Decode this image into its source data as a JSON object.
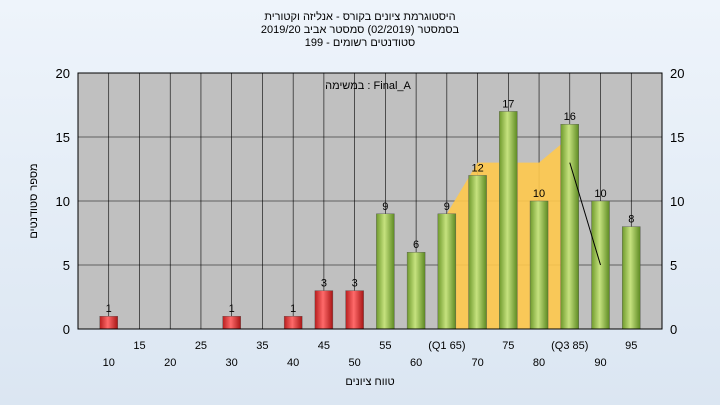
{
  "title_lines": [
    "היסטוגרמת ציונים בקורס - אנליזה וקטורית",
    "בסמסטר  (02/2019)  סמסטר אביב 2019/20",
    "199 - סטודנטים רשומים"
  ],
  "chart_data": {
    "type": "bar",
    "annotation": "במשימה : Final_A",
    "xlabel": "טווח ציונים",
    "ylabel": "מספר סטודנטים",
    "ylim": [
      0,
      20
    ],
    "yticks": [
      0,
      5,
      10,
      15,
      20
    ],
    "x_tick_labels": [
      {
        "label": "10",
        "row": "low"
      },
      {
        "label": "15",
        "row": "high"
      },
      {
        "label": "20",
        "row": "low"
      },
      {
        "label": "25",
        "row": "high"
      },
      {
        "label": "30",
        "row": "low"
      },
      {
        "label": "35",
        "row": "high"
      },
      {
        "label": "40",
        "row": "low"
      },
      {
        "label": "45",
        "row": "high"
      },
      {
        "label": "50",
        "row": "low"
      },
      {
        "label": "55",
        "row": "high"
      },
      {
        "label": "60",
        "row": "low"
      },
      {
        "label": "(Q1 65)",
        "row": "high"
      },
      {
        "label": "70",
        "row": "low"
      },
      {
        "label": "75",
        "row": "high"
      },
      {
        "label": "80",
        "row": "low"
      },
      {
        "label": "(Q3 85)",
        "row": "high"
      },
      {
        "label": "90",
        "row": "low"
      },
      {
        "label": "95",
        "row": "high"
      }
    ],
    "bars": [
      {
        "x": 10,
        "value": 1,
        "color": "#e03a3a"
      },
      {
        "x": 30,
        "value": 1,
        "color": "#e03a3a"
      },
      {
        "x": 40,
        "value": 1,
        "color": "#e03a3a"
      },
      {
        "x": 45,
        "value": 3,
        "color": "#e03a3a"
      },
      {
        "x": 50,
        "value": 3,
        "color": "#e03a3a"
      },
      {
        "x": 55,
        "value": 9,
        "color": "#8cc043"
      },
      {
        "x": 60,
        "value": 6,
        "color": "#8cc043"
      },
      {
        "x": 65,
        "value": 9,
        "color": "#8cc043"
      },
      {
        "x": 70,
        "value": 12,
        "color": "#8cc043"
      },
      {
        "x": 75,
        "value": 17,
        "color": "#8cc043"
      },
      {
        "x": 80,
        "value": 10,
        "color": "#8cc043"
      },
      {
        "x": 85,
        "value": 16,
        "color": "#8cc043"
      },
      {
        "x": 90,
        "value": 10,
        "color": "#8cc043"
      },
      {
        "x": 95,
        "value": 8,
        "color": "#8cc043"
      }
    ],
    "band_area": {
      "color": "#ffc94d",
      "points": [
        [
          65,
          9
        ],
        [
          70,
          13
        ],
        [
          75,
          13
        ],
        [
          80,
          13
        ],
        [
          85,
          15
        ]
      ]
    },
    "trend_line": [
      [
        85,
        13
      ],
      [
        90,
        5
      ]
    ],
    "colors": {
      "plot_bg": "#c0c0c0",
      "grid": "#000000",
      "frame": "#000000"
    }
  }
}
